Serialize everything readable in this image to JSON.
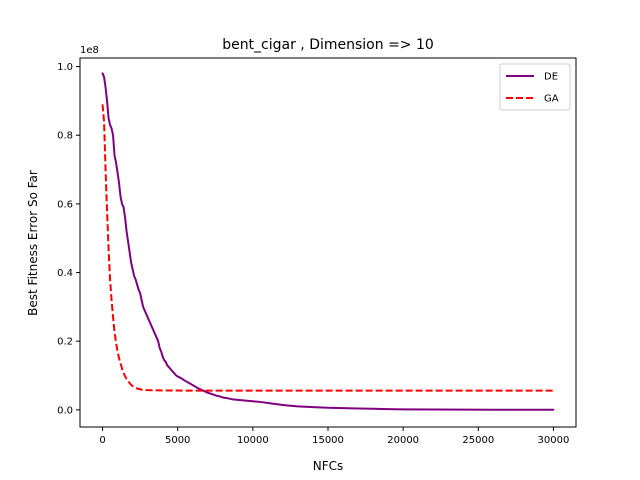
{
  "chart_data": {
    "type": "line",
    "title": "bent_cigar , Dimension => 10",
    "xlabel": "NFCs",
    "ylabel": "Best Fitness Error So Far",
    "offset_text": "1e8",
    "xlim": [
      -1500,
      31500
    ],
    "ylim": [
      -0.05,
      1.025
    ],
    "xticks": [
      0,
      5000,
      10000,
      15000,
      20000,
      25000,
      30000
    ],
    "xtick_labels": [
      "0",
      "5000",
      "10000",
      "15000",
      "20000",
      "25000",
      "30000"
    ],
    "yticks": [
      0.0,
      0.2,
      0.4,
      0.6,
      0.8,
      1.0
    ],
    "ytick_labels": [
      "0.0",
      "0.2",
      "0.4",
      "0.6",
      "0.8",
      "1.0"
    ],
    "grid": false,
    "legend": "top-right",
    "series": [
      {
        "name": "DE",
        "color": "#800080",
        "style": "solid",
        "x": [
          0,
          100,
          200,
          300,
          400,
          500,
          600,
          700,
          800,
          900,
          1000,
          1100,
          1200,
          1300,
          1400,
          1500,
          1600,
          1700,
          1800,
          1900,
          2000,
          2100,
          2200,
          2300,
          2400,
          2500,
          2600,
          2700,
          2800,
          2900,
          3000,
          3100,
          3200,
          3300,
          3400,
          3500,
          3600,
          3700,
          3800,
          3900,
          4000,
          4100,
          4200,
          4300,
          4400,
          4500,
          4600,
          4700,
          4800,
          4900,
          5000,
          5200,
          5400,
          5600,
          5800,
          6000,
          6200,
          6400,
          6600,
          6800,
          7000,
          7200,
          7400,
          7600,
          7800,
          8000,
          8300,
          8600,
          9000,
          9500,
          10000,
          10500,
          11000,
          11500,
          12000,
          12500,
          13000,
          14000,
          15000,
          16000,
          17000,
          18000,
          19000,
          20000,
          22000,
          24000,
          26000,
          28000,
          30000
        ],
        "y": [
          0.98,
          0.97,
          0.94,
          0.9,
          0.85,
          0.83,
          0.82,
          0.8,
          0.74,
          0.72,
          0.69,
          0.66,
          0.62,
          0.6,
          0.59,
          0.56,
          0.52,
          0.49,
          0.46,
          0.43,
          0.41,
          0.39,
          0.38,
          0.365,
          0.35,
          0.34,
          0.32,
          0.3,
          0.29,
          0.28,
          0.27,
          0.26,
          0.25,
          0.24,
          0.23,
          0.22,
          0.21,
          0.2,
          0.18,
          0.17,
          0.155,
          0.145,
          0.14,
          0.13,
          0.125,
          0.12,
          0.115,
          0.11,
          0.105,
          0.1,
          0.097,
          0.093,
          0.087,
          0.082,
          0.077,
          0.072,
          0.067,
          0.062,
          0.058,
          0.054,
          0.05,
          0.047,
          0.044,
          0.041,
          0.039,
          0.036,
          0.034,
          0.031,
          0.029,
          0.027,
          0.025,
          0.023,
          0.02,
          0.017,
          0.014,
          0.012,
          0.01,
          0.008,
          0.006,
          0.005,
          0.004,
          0.003,
          0.002,
          0.0015,
          0.001,
          0.0005,
          0.0003,
          0.0002,
          0.0001
        ]
      },
      {
        "name": "GA",
        "color": "#ff0000",
        "style": "dashed",
        "x": [
          0,
          100,
          200,
          300,
          400,
          500,
          600,
          700,
          800,
          900,
          1000,
          1100,
          1200,
          1300,
          1400,
          1500,
          1600,
          1700,
          1800,
          1900,
          2000,
          2100,
          2200,
          2300,
          2400,
          2500,
          2600,
          2800,
          3000,
          3500,
          4000,
          5000,
          6000,
          8000,
          10000,
          15000,
          20000,
          25000,
          30000
        ],
        "y": [
          0.89,
          0.84,
          0.7,
          0.58,
          0.47,
          0.38,
          0.32,
          0.27,
          0.225,
          0.195,
          0.17,
          0.15,
          0.135,
          0.12,
          0.108,
          0.098,
          0.09,
          0.084,
          0.078,
          0.073,
          0.069,
          0.066,
          0.064,
          0.062,
          0.061,
          0.06,
          0.059,
          0.058,
          0.0575,
          0.057,
          0.0565,
          0.0562,
          0.056,
          0.056,
          0.056,
          0.056,
          0.056,
          0.056,
          0.056
        ]
      }
    ]
  }
}
